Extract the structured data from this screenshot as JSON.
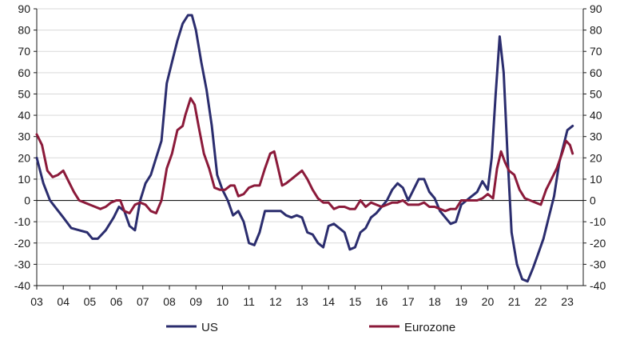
{
  "chart_data": {
    "type": "line",
    "title": "",
    "xlabel": "",
    "ylabel": "",
    "ylim": [
      -40,
      90
    ],
    "xlim": [
      2003,
      2023.6
    ],
    "y_ticks": [
      "90",
      "80",
      "70",
      "60",
      "50",
      "40",
      "30",
      "20",
      "10",
      "0",
      "-10",
      "-20",
      "-30",
      "-40"
    ],
    "y_tick_values": [
      90,
      80,
      70,
      60,
      50,
      40,
      30,
      20,
      10,
      0,
      -10,
      -20,
      -30,
      -40
    ],
    "x_ticks": [
      "03",
      "04",
      "05",
      "06",
      "07",
      "08",
      "09",
      "10",
      "11",
      "12",
      "13",
      "14",
      "15",
      "16",
      "17",
      "18",
      "19",
      "20",
      "21",
      "22",
      "23"
    ],
    "x_tick_values": [
      2003,
      2004,
      2005,
      2006,
      2007,
      2008,
      2009,
      2010,
      2011,
      2012,
      2013,
      2014,
      2015,
      2016,
      2017,
      2018,
      2019,
      2020,
      2021,
      2022,
      2023
    ],
    "grid": "horizontal",
    "legend_position": "bottom",
    "series": [
      {
        "name": "US",
        "color": "#2b2d6e",
        "points": [
          [
            2003.0,
            20
          ],
          [
            2003.25,
            8
          ],
          [
            2003.5,
            0
          ],
          [
            2003.75,
            -4
          ],
          [
            2004.0,
            -8
          ],
          [
            2004.3,
            -13
          ],
          [
            2004.6,
            -14
          ],
          [
            2004.9,
            -15
          ],
          [
            2005.1,
            -18
          ],
          [
            2005.3,
            -18
          ],
          [
            2005.6,
            -14
          ],
          [
            2005.9,
            -8
          ],
          [
            2006.1,
            -3
          ],
          [
            2006.3,
            -5
          ],
          [
            2006.5,
            -12
          ],
          [
            2006.7,
            -14
          ],
          [
            2006.9,
            0
          ],
          [
            2007.1,
            8
          ],
          [
            2007.3,
            12
          ],
          [
            2007.5,
            20
          ],
          [
            2007.7,
            28
          ],
          [
            2007.9,
            55
          ],
          [
            2008.1,
            65
          ],
          [
            2008.3,
            75
          ],
          [
            2008.5,
            83
          ],
          [
            2008.7,
            87
          ],
          [
            2008.85,
            87
          ],
          [
            2009.0,
            80
          ],
          [
            2009.2,
            65
          ],
          [
            2009.4,
            52
          ],
          [
            2009.6,
            35
          ],
          [
            2009.8,
            12
          ],
          [
            2010.0,
            5
          ],
          [
            2010.2,
            0
          ],
          [
            2010.4,
            -7
          ],
          [
            2010.6,
            -5
          ],
          [
            2010.8,
            -10
          ],
          [
            2011.0,
            -20
          ],
          [
            2011.2,
            -21
          ],
          [
            2011.4,
            -15
          ],
          [
            2011.6,
            -5
          ],
          [
            2011.8,
            -5
          ],
          [
            2012.0,
            -5
          ],
          [
            2012.2,
            -5
          ],
          [
            2012.4,
            -7
          ],
          [
            2012.6,
            -8
          ],
          [
            2012.8,
            -7
          ],
          [
            2013.0,
            -8
          ],
          [
            2013.2,
            -15
          ],
          [
            2013.4,
            -16
          ],
          [
            2013.6,
            -20
          ],
          [
            2013.8,
            -22
          ],
          [
            2014.0,
            -12
          ],
          [
            2014.2,
            -11
          ],
          [
            2014.4,
            -13
          ],
          [
            2014.6,
            -15
          ],
          [
            2014.8,
            -23
          ],
          [
            2015.0,
            -22
          ],
          [
            2015.2,
            -15
          ],
          [
            2015.4,
            -13
          ],
          [
            2015.6,
            -8
          ],
          [
            2015.8,
            -6
          ],
          [
            2016.0,
            -3
          ],
          [
            2016.2,
            0
          ],
          [
            2016.4,
            5
          ],
          [
            2016.6,
            8
          ],
          [
            2016.8,
            6
          ],
          [
            2017.0,
            0
          ],
          [
            2017.2,
            5
          ],
          [
            2017.4,
            10
          ],
          [
            2017.6,
            10
          ],
          [
            2017.8,
            4
          ],
          [
            2018.0,
            1
          ],
          [
            2018.2,
            -5
          ],
          [
            2018.4,
            -8
          ],
          [
            2018.6,
            -11
          ],
          [
            2018.8,
            -10
          ],
          [
            2019.0,
            -2
          ],
          [
            2019.2,
            0
          ],
          [
            2019.4,
            2
          ],
          [
            2019.6,
            4
          ],
          [
            2019.8,
            9
          ],
          [
            2020.0,
            5
          ],
          [
            2020.15,
            20
          ],
          [
            2020.3,
            50
          ],
          [
            2020.45,
            77
          ],
          [
            2020.6,
            60
          ],
          [
            2020.75,
            20
          ],
          [
            2020.9,
            -15
          ],
          [
            2021.1,
            -30
          ],
          [
            2021.3,
            -37
          ],
          [
            2021.5,
            -38
          ],
          [
            2021.7,
            -32
          ],
          [
            2021.9,
            -25
          ],
          [
            2022.1,
            -18
          ],
          [
            2022.3,
            -8
          ],
          [
            2022.5,
            2
          ],
          [
            2022.7,
            18
          ],
          [
            2022.9,
            28
          ],
          [
            2023.0,
            33
          ],
          [
            2023.2,
            35
          ]
        ]
      },
      {
        "name": "Eurozone",
        "color": "#8b1a3a",
        "points": [
          [
            2003.0,
            31
          ],
          [
            2003.2,
            26
          ],
          [
            2003.4,
            14
          ],
          [
            2003.6,
            11
          ],
          [
            2003.8,
            12
          ],
          [
            2004.0,
            14
          ],
          [
            2004.2,
            9
          ],
          [
            2004.4,
            4
          ],
          [
            2004.6,
            0
          ],
          [
            2004.8,
            -1
          ],
          [
            2005.0,
            -2
          ],
          [
            2005.2,
            -3
          ],
          [
            2005.4,
            -4
          ],
          [
            2005.6,
            -3
          ],
          [
            2005.8,
            -1
          ],
          [
            2006.0,
            0
          ],
          [
            2006.15,
            0
          ],
          [
            2006.3,
            -5
          ],
          [
            2006.5,
            -6
          ],
          [
            2006.7,
            -2
          ],
          [
            2006.9,
            -1
          ],
          [
            2007.1,
            -2
          ],
          [
            2007.3,
            -5
          ],
          [
            2007.5,
            -6
          ],
          [
            2007.7,
            0
          ],
          [
            2007.9,
            15
          ],
          [
            2008.1,
            22
          ],
          [
            2008.3,
            33
          ],
          [
            2008.5,
            35
          ],
          [
            2008.6,
            40
          ],
          [
            2008.8,
            48
          ],
          [
            2008.95,
            45
          ],
          [
            2009.1,
            35
          ],
          [
            2009.3,
            22
          ],
          [
            2009.5,
            15
          ],
          [
            2009.7,
            6
          ],
          [
            2009.9,
            5
          ],
          [
            2010.1,
            5
          ],
          [
            2010.3,
            7
          ],
          [
            2010.45,
            7
          ],
          [
            2010.6,
            2
          ],
          [
            2010.8,
            3
          ],
          [
            2011.0,
            6
          ],
          [
            2011.2,
            7
          ],
          [
            2011.4,
            7
          ],
          [
            2011.6,
            15
          ],
          [
            2011.8,
            22
          ],
          [
            2011.95,
            23
          ],
          [
            2012.1,
            15
          ],
          [
            2012.25,
            7
          ],
          [
            2012.4,
            8
          ],
          [
            2012.6,
            10
          ],
          [
            2012.8,
            12
          ],
          [
            2013.0,
            14
          ],
          [
            2013.2,
            10
          ],
          [
            2013.4,
            5
          ],
          [
            2013.6,
            1
          ],
          [
            2013.8,
            -1
          ],
          [
            2014.0,
            -1
          ],
          [
            2014.2,
            -4
          ],
          [
            2014.4,
            -3
          ],
          [
            2014.6,
            -3
          ],
          [
            2014.8,
            -4
          ],
          [
            2015.0,
            -4
          ],
          [
            2015.2,
            0
          ],
          [
            2015.4,
            -3
          ],
          [
            2015.6,
            -1
          ],
          [
            2015.8,
            -2
          ],
          [
            2016.0,
            -3
          ],
          [
            2016.2,
            -2
          ],
          [
            2016.4,
            -1
          ],
          [
            2016.6,
            -1
          ],
          [
            2016.8,
            0
          ],
          [
            2017.0,
            -2
          ],
          [
            2017.2,
            -2
          ],
          [
            2017.4,
            -2
          ],
          [
            2017.6,
            -1
          ],
          [
            2017.8,
            -3
          ],
          [
            2018.0,
            -3
          ],
          [
            2018.2,
            -4
          ],
          [
            2018.4,
            -5
          ],
          [
            2018.6,
            -4
          ],
          [
            2018.8,
            -4
          ],
          [
            2019.0,
            0
          ],
          [
            2019.2,
            0
          ],
          [
            2019.4,
            0
          ],
          [
            2019.6,
            0
          ],
          [
            2019.8,
            1
          ],
          [
            2020.0,
            3
          ],
          [
            2020.2,
            1
          ],
          [
            2020.35,
            15
          ],
          [
            2020.5,
            23
          ],
          [
            2020.65,
            18
          ],
          [
            2020.8,
            14
          ],
          [
            2021.0,
            12
          ],
          [
            2021.2,
            5
          ],
          [
            2021.4,
            1
          ],
          [
            2021.6,
            0
          ],
          [
            2021.8,
            -1
          ],
          [
            2022.0,
            -2
          ],
          [
            2022.2,
            5
          ],
          [
            2022.4,
            10
          ],
          [
            2022.6,
            15
          ],
          [
            2022.8,
            22
          ],
          [
            2022.95,
            28
          ],
          [
            2023.1,
            26
          ],
          [
            2023.2,
            22
          ]
        ]
      }
    ]
  }
}
